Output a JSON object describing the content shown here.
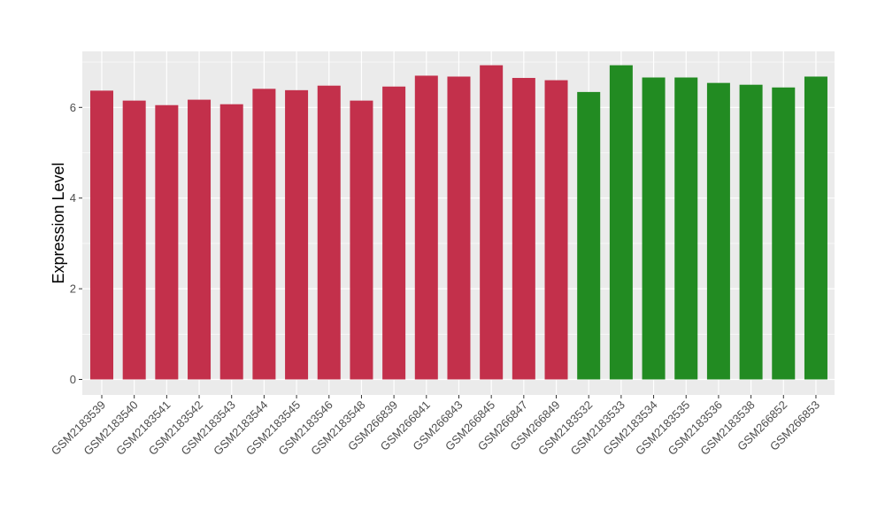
{
  "chart_data": {
    "type": "bar",
    "title": "",
    "xlabel": "",
    "ylabel": "Expression Level",
    "ylim": [
      0,
      7.2
    ],
    "yticks": [
      0,
      2,
      4,
      6
    ],
    "grid": true,
    "colors": {
      "group_a": "#c3304b",
      "group_b": "#228b22",
      "panel": "#ebebeb",
      "grid": "#ffffff"
    },
    "categories": [
      "GSM2183539",
      "GSM2183540",
      "GSM2183541",
      "GSM2183542",
      "GSM2183543",
      "GSM2183544",
      "GSM2183545",
      "GSM2183546",
      "GSM2183548",
      "GSM266839",
      "GSM266841",
      "GSM266843",
      "GSM266845",
      "GSM266847",
      "GSM266849",
      "GSM2183532",
      "GSM2183533",
      "GSM2183534",
      "GSM2183535",
      "GSM2183536",
      "GSM2183538",
      "GSM266852",
      "GSM266853"
    ],
    "values": [
      6.37,
      6.15,
      6.05,
      6.17,
      6.07,
      6.41,
      6.38,
      6.48,
      6.15,
      6.46,
      6.7,
      6.68,
      6.93,
      6.65,
      6.6,
      6.34,
      6.93,
      6.66,
      6.66,
      6.54,
      6.5,
      6.44,
      6.68
    ],
    "groups": [
      "a",
      "a",
      "a",
      "a",
      "a",
      "a",
      "a",
      "a",
      "a",
      "a",
      "a",
      "a",
      "a",
      "a",
      "a",
      "b",
      "b",
      "b",
      "b",
      "b",
      "b",
      "b",
      "b"
    ]
  }
}
